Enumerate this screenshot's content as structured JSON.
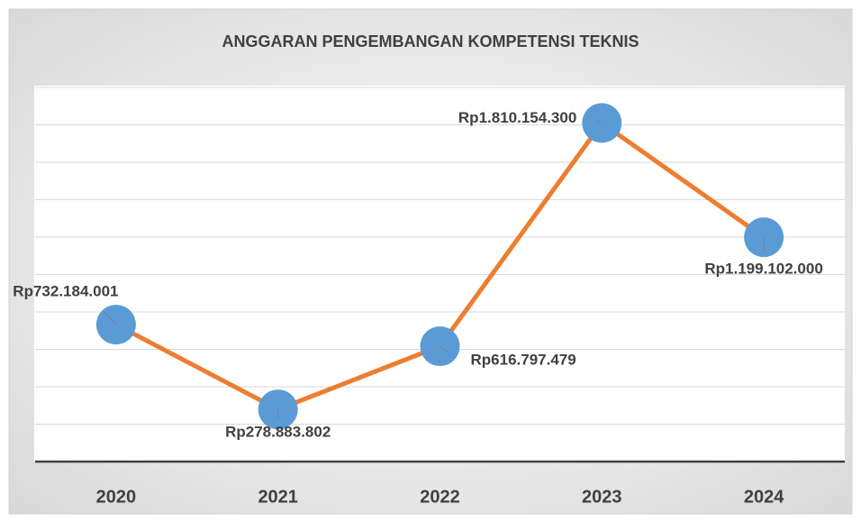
{
  "chart_data": {
    "type": "line",
    "title": "ANGGARAN PENGEMBANGAN KOMPETENSI TEKNIS",
    "categories": [
      "2020",
      "2021",
      "2022",
      "2023",
      "2024"
    ],
    "series": [
      {
        "color": "#ed7d31",
        "marker_color": "#5b9bd5",
        "values": [
          732184001,
          278883802,
          616797479,
          1810154300,
          1199102000
        ],
        "value_labels": [
          "Rp732.184.001",
          "Rp278.883.802",
          "Rp616.797.479",
          "Rp1.810.154.300",
          "Rp1.199.102.000"
        ]
      }
    ],
    "ylim": [
      0,
      2000000000
    ],
    "yticks": [
      0,
      200000000,
      400000000,
      600000000,
      800000000,
      1000000000,
      1200000000,
      1400000000,
      1600000000,
      1800000000,
      2000000000
    ],
    "grid": true
  }
}
